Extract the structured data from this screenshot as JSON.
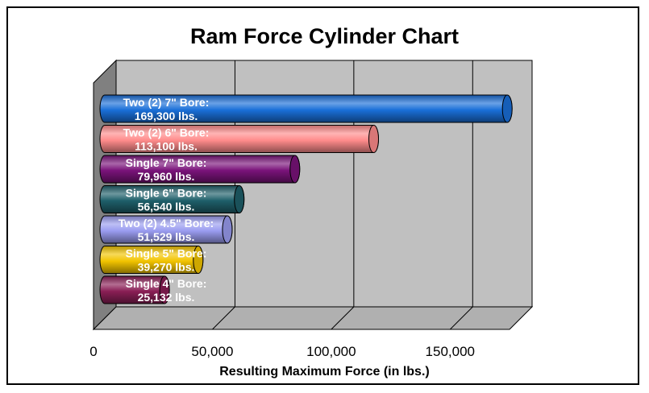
{
  "chart_data": {
    "type": "bar",
    "orientation": "horizontal",
    "style": "3d-cylinder",
    "title": "Ram Force Cylinder Chart",
    "xlabel": "Resulting Maximum Force (in lbs.)",
    "ylabel": "",
    "xlim": [
      0,
      175000
    ],
    "xticks": [
      0,
      50000,
      100000,
      150000
    ],
    "xtick_labels": [
      "0",
      "50,000",
      "100,000",
      "150,000"
    ],
    "grid": true,
    "legend": "none",
    "categories": [
      "Two (2) 7\" Bore:",
      "Two (2) 6\" Bore:",
      "Single 7\" Bore:",
      "Single 6\" Bore:",
      "Two (2) 4.5\" Bore:",
      "Single 5\" Bore:",
      "Single 4\" Bore:"
    ],
    "value_labels": [
      "169,300 lbs.",
      "113,100 lbs.",
      "79,960 lbs.",
      "56,540 lbs.",
      "51,529 lbs.",
      "39,270 lbs.",
      "25,132 lbs."
    ],
    "values": [
      169300,
      113100,
      79960,
      56540,
      51529,
      39270,
      25132
    ],
    "colors": [
      "#1a6fd8",
      "#ff8c8c",
      "#7a137a",
      "#1e5f6a",
      "#9a9cf0",
      "#f2c400",
      "#8a1f55"
    ],
    "plot_color": "#c0c0c0"
  }
}
